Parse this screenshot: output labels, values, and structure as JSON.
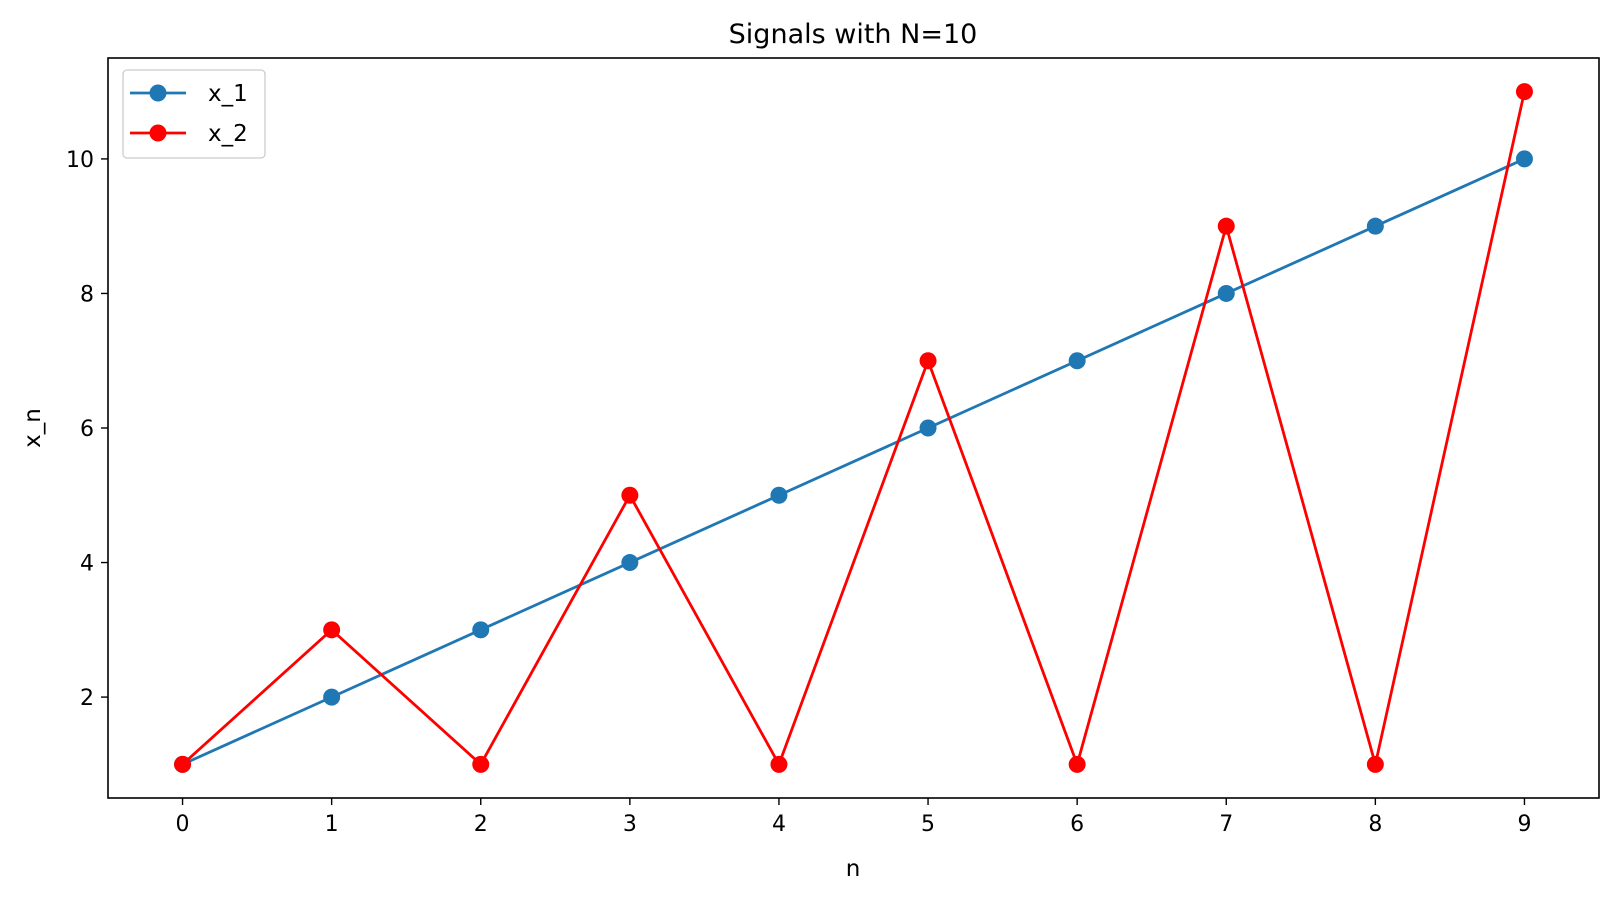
{
  "chart_data": {
    "type": "line",
    "title": "Signals with N=10",
    "xlabel": "n",
    "ylabel": "x_n",
    "x": [
      0,
      1,
      2,
      3,
      4,
      5,
      6,
      7,
      8,
      9
    ],
    "xlim": [
      -0.5,
      9.5
    ],
    "ylim": [
      0.5,
      11.5
    ],
    "xticks": [
      0,
      1,
      2,
      3,
      4,
      5,
      6,
      7,
      8,
      9
    ],
    "yticks": [
      2,
      4,
      6,
      8,
      10
    ],
    "grid": false,
    "legend_position": "top-left",
    "series": [
      {
        "name": "x_1",
        "color": "#1f77b4",
        "marker": "circle",
        "values": [
          1,
          2,
          3,
          4,
          5,
          6,
          7,
          8,
          9,
          10
        ]
      },
      {
        "name": "x_2",
        "color": "#ff0000",
        "marker": "circle",
        "values": [
          1,
          3,
          1,
          5,
          1,
          7,
          1,
          9,
          1,
          11
        ]
      }
    ]
  }
}
